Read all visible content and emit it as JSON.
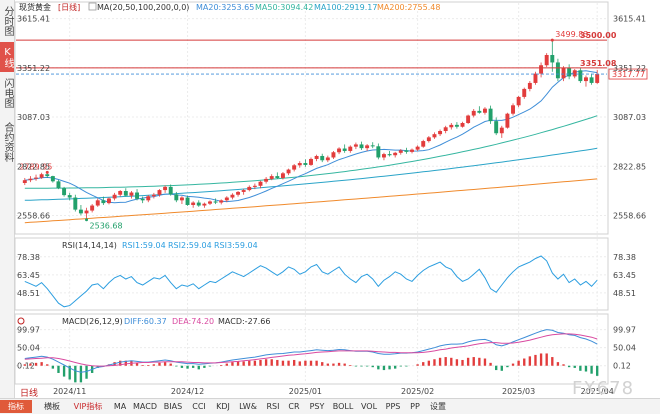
{
  "sidebar": {
    "tabs": [
      {
        "label": "分时图",
        "active": false
      },
      {
        "label": "K线图",
        "active": true
      },
      {
        "label": "闪电图",
        "active": false
      },
      {
        "label": "合约资料",
        "active": false
      }
    ]
  },
  "header": {
    "instrument": "现货黄金",
    "timeframe_badge": "[日线]",
    "ma_params": "MA(20,50,100,200,0,0)",
    "ma20": "MA20:3253.65",
    "ma50": "MA50:3094.42",
    "ma100": "MA100:2919.17",
    "ma200": "MA200:2755.48"
  },
  "rsi_header": {
    "label": "RSI(14,14,14)",
    "rsi1": "RSI1:59.04",
    "rsi2": "RSI2:59.04",
    "rsi3": "RSI3:59.04"
  },
  "macd_header": {
    "label": "MACD(26,12,9)",
    "diff": "DIFF:60.37",
    "dea": "DEA:74.20",
    "macd": "MACD:-27.66"
  },
  "bottom_bar": {
    "timeframe": "日线",
    "buttons": [
      "指标",
      "横板",
      "VIP指标",
      "MA",
      "MACD",
      "BIAS",
      "CCI",
      "KDJ",
      "LW&",
      "RSI",
      "CR",
      "PSY",
      "BOLL",
      "VOL",
      "PPS",
      "PP",
      "设置"
    ]
  },
  "watermark": "FX678",
  "colors": {
    "up": "#e23c3c",
    "down": "#22a06b",
    "ma20": "#3f8ed8",
    "ma50": "#35b6a0",
    "ma100": "#2aa4c8",
    "ma200": "#f08a2c",
    "rsi": "#2c9ee0",
    "diff": "#3f8ed8",
    "dea": "#d94aa0",
    "level_line": "#d53a3a"
  },
  "chart_data": [
    {
      "type": "candlestick",
      "title": "现货黄金 [日线]",
      "x_tick_labels": [
        "2024/11",
        "2024/12",
        "2025/01",
        "2025/02",
        "2025/03",
        "2025/04"
      ],
      "y_tick_labels": [
        "3615.41",
        "3351.22",
        "3087.03",
        "2822.85",
        "2558.66"
      ],
      "ylim": [
        2470,
        3640
      ],
      "annotations": {
        "high": "3499.83",
        "low": "2536.68",
        "swing_high": "2789.95"
      },
      "levels": [
        {
          "value": 3500.0,
          "label": "3500.00"
        },
        {
          "value": 3351.08,
          "label": "3351.08"
        }
      ],
      "last_price": "3317.77",
      "ohlc": [
        [
          2733,
          2760,
          2722,
          2748
        ],
        [
          2748,
          2770,
          2738,
          2756
        ],
        [
          2756,
          2778,
          2745,
          2762
        ],
        [
          2762,
          2788,
          2755,
          2780
        ],
        [
          2780,
          2790,
          2760,
          2770
        ],
        [
          2770,
          2772,
          2735,
          2742
        ],
        [
          2742,
          2750,
          2700,
          2705
        ],
        [
          2705,
          2712,
          2660,
          2668
        ],
        [
          2668,
          2680,
          2640,
          2655
        ],
        [
          2655,
          2670,
          2580,
          2590
        ],
        [
          2590,
          2615,
          2560,
          2570
        ],
        [
          2570,
          2600,
          2536,
          2585
        ],
        [
          2585,
          2620,
          2575,
          2612
        ],
        [
          2612,
          2650,
          2605,
          2640
        ],
        [
          2640,
          2660,
          2615,
          2625
        ],
        [
          2625,
          2655,
          2618,
          2650
        ],
        [
          2650,
          2680,
          2640,
          2670
        ],
        [
          2670,
          2695,
          2660,
          2690
        ],
        [
          2690,
          2705,
          2660,
          2665
        ],
        [
          2665,
          2690,
          2650,
          2682
        ],
        [
          2682,
          2700,
          2640,
          2648
        ],
        [
          2648,
          2660,
          2625,
          2640
        ],
        [
          2640,
          2668,
          2630,
          2662
        ],
        [
          2662,
          2680,
          2650,
          2670
        ],
        [
          2670,
          2700,
          2660,
          2695
        ],
        [
          2695,
          2720,
          2680,
          2712
        ],
        [
          2712,
          2725,
          2665,
          2672
        ],
        [
          2672,
          2685,
          2630,
          2640
        ],
        [
          2640,
          2662,
          2620,
          2655
        ],
        [
          2655,
          2665,
          2610,
          2615
        ],
        [
          2615,
          2635,
          2600,
          2628
        ],
        [
          2628,
          2640,
          2605,
          2612
        ],
        [
          2612,
          2628,
          2600,
          2622
        ],
        [
          2622,
          2640,
          2615,
          2634
        ],
        [
          2634,
          2650,
          2620,
          2628
        ],
        [
          2628,
          2645,
          2618,
          2640
        ],
        [
          2640,
          2662,
          2630,
          2655
        ],
        [
          2655,
          2678,
          2645,
          2670
        ],
        [
          2670,
          2690,
          2660,
          2685
        ],
        [
          2685,
          2702,
          2670,
          2695
        ],
        [
          2695,
          2720,
          2688,
          2712
        ],
        [
          2712,
          2730,
          2700,
          2718
        ],
        [
          2718,
          2745,
          2705,
          2740
        ],
        [
          2740,
          2765,
          2730,
          2755
        ],
        [
          2755,
          2780,
          2748,
          2770
        ],
        [
          2770,
          2790,
          2755,
          2760
        ],
        [
          2760,
          2792,
          2752,
          2785
        ],
        [
          2785,
          2810,
          2775,
          2805
        ],
        [
          2805,
          2835,
          2795,
          2828
        ],
        [
          2828,
          2850,
          2815,
          2840
        ],
        [
          2840,
          2860,
          2820,
          2830
        ],
        [
          2830,
          2870,
          2825,
          2862
        ],
        [
          2862,
          2885,
          2850,
          2878
        ],
        [
          2878,
          2890,
          2845,
          2855
        ],
        [
          2855,
          2880,
          2845,
          2870
        ],
        [
          2870,
          2905,
          2862,
          2898
        ],
        [
          2898,
          2925,
          2888,
          2918
        ],
        [
          2918,
          2940,
          2895,
          2905
        ],
        [
          2905,
          2935,
          2895,
          2928
        ],
        [
          2928,
          2950,
          2915,
          2940
        ],
        [
          2940,
          2955,
          2910,
          2920
        ],
        [
          2920,
          2942,
          2905,
          2935
        ],
        [
          2935,
          2952,
          2920,
          2930
        ],
        [
          2930,
          2945,
          2860,
          2870
        ],
        [
          2870,
          2895,
          2855,
          2888
        ],
        [
          2888,
          2905,
          2875,
          2882
        ],
        [
          2882,
          2900,
          2870,
          2895
        ],
        [
          2895,
          2915,
          2885,
          2908
        ],
        [
          2908,
          2922,
          2890,
          2900
        ],
        [
          2900,
          2918,
          2892,
          2912
        ],
        [
          2912,
          2935,
          2905,
          2928
        ],
        [
          2928,
          2965,
          2922,
          2958
        ],
        [
          2958,
          2985,
          2950,
          2978
        ],
        [
          2978,
          3005,
          2970,
          2995
        ],
        [
          2995,
          3020,
          2985,
          3012
        ],
        [
          3012,
          3040,
          3000,
          3032
        ],
        [
          3032,
          3055,
          3020,
          3045
        ],
        [
          3045,
          3060,
          3025,
          3035
        ],
        [
          3035,
          3062,
          3030,
          3055
        ],
        [
          3055,
          3100,
          3050,
          3095
        ],
        [
          3095,
          3130,
          3085,
          3120
        ],
        [
          3120,
          3145,
          3105,
          3110
        ],
        [
          3110,
          3140,
          3100,
          3132
        ],
        [
          3132,
          3148,
          3050,
          3065
        ],
        [
          3065,
          3085,
          2990,
          3000
        ],
        [
          3000,
          3040,
          2975,
          3030
        ],
        [
          3030,
          3110,
          3025,
          3105
        ],
        [
          3105,
          3160,
          3095,
          3150
        ],
        [
          3150,
          3200,
          3140,
          3195
        ],
        [
          3195,
          3245,
          3185,
          3238
        ],
        [
          3238,
          3280,
          3225,
          3270
        ],
        [
          3270,
          3330,
          3260,
          3320
        ],
        [
          3320,
          3380,
          3300,
          3365
        ],
        [
          3365,
          3430,
          3355,
          3420
        ],
        [
          3420,
          3500,
          3330,
          3380
        ],
        [
          3380,
          3400,
          3280,
          3295
        ],
        [
          3295,
          3360,
          3280,
          3350
        ],
        [
          3350,
          3370,
          3290,
          3305
        ],
        [
          3305,
          3345,
          3295,
          3338
        ],
        [
          3338,
          3350,
          3270,
          3280
        ],
        [
          3280,
          3310,
          3250,
          3300
        ],
        [
          3300,
          3320,
          3260,
          3270
        ],
        [
          3270,
          3340,
          3265,
          3318
        ]
      ],
      "ma": {
        "ma20": [
          2735,
          3253
        ],
        "ma50": [
          2705,
          3094
        ],
        "ma100": [
          2640,
          2919
        ],
        "ma200": [
          2520,
          2755
        ]
      }
    },
    {
      "type": "line",
      "title": "RSI(14,14,14)",
      "y_tick_labels": [
        "78.38",
        "63.45",
        "48.51"
      ],
      "ylim": [
        36,
        84
      ],
      "series": [
        {
          "name": "RSI1",
          "values": [
            58,
            56,
            54,
            57,
            52,
            46,
            40,
            37,
            38,
            42,
            46,
            50,
            55,
            56,
            52,
            57,
            61,
            63,
            60,
            62,
            57,
            55,
            58,
            61,
            60,
            63,
            57,
            52,
            55,
            54,
            56,
            52,
            55,
            58,
            57,
            60,
            63,
            66,
            64,
            62,
            65,
            68,
            71,
            69,
            66,
            63,
            66,
            70,
            68,
            64,
            66,
            70,
            72,
            66,
            64,
            67,
            70,
            64,
            60,
            57,
            62,
            64,
            60,
            54,
            59,
            62,
            66,
            64,
            60,
            58,
            63,
            67,
            70,
            72,
            74,
            70,
            68,
            62,
            58,
            60,
            64,
            68,
            61,
            52,
            49,
            55,
            61,
            66,
            70,
            72,
            74,
            77,
            79,
            75,
            65,
            60,
            64,
            57,
            60,
            55,
            58,
            54,
            59
          ]
        }
      ]
    },
    {
      "type": "bar+line",
      "title": "MACD(26,12,9)",
      "y_tick_labels": [
        "99.97",
        "50.04",
        "0.12"
      ],
      "ylim": [
        -45,
        110
      ],
      "series": [
        {
          "name": "DIFF",
          "values": [
            20,
            22,
            24,
            26,
            24,
            18,
            10,
            2,
            -6,
            -14,
            -18,
            -16,
            -10,
            -4,
            -2,
            2,
            6,
            10,
            12,
            14,
            12,
            10,
            10,
            12,
            14,
            16,
            14,
            10,
            8,
            6,
            6,
            4,
            5,
            7,
            8,
            10,
            13,
            16,
            18,
            20,
            22,
            24,
            27,
            30,
            32,
            33,
            34,
            36,
            38,
            38,
            40,
            42,
            44,
            43,
            42,
            43,
            45,
            44,
            42,
            40,
            40,
            40,
            38,
            34,
            32,
            32,
            33,
            35,
            35,
            36,
            38,
            42,
            46,
            50,
            55,
            58,
            60,
            60,
            61,
            66,
            70,
            72,
            73,
            68,
            58,
            55,
            60,
            66,
            72,
            78,
            84,
            90,
            96,
            100,
            98,
            92,
            90,
            86,
            84,
            78,
            74,
            68,
            60
          ]
        },
        {
          "name": "DEA",
          "values": [
            18,
            19,
            20,
            21,
            22,
            22,
            20,
            17,
            13,
            9,
            5,
            2,
            0,
            -1,
            -1,
            0,
            1,
            3,
            5,
            7,
            8,
            9,
            9,
            10,
            10,
            11,
            11,
            11,
            11,
            10,
            9,
            9,
            8,
            8,
            8,
            9,
            10,
            11,
            12,
            14,
            15,
            17,
            19,
            21,
            23,
            25,
            27,
            29,
            30,
            32,
            33,
            35,
            37,
            38,
            39,
            40,
            41,
            41,
            41,
            41,
            41,
            41,
            40,
            39,
            38,
            37,
            37,
            36,
            36,
            36,
            36,
            37,
            39,
            41,
            44,
            46,
            49,
            51,
            53,
            55,
            58,
            61,
            63,
            64,
            64,
            62,
            62,
            63,
            65,
            68,
            71,
            75,
            79,
            83,
            86,
            87,
            88,
            88,
            87,
            85,
            82,
            79,
            74
          ]
        }
      ]
    }
  ]
}
